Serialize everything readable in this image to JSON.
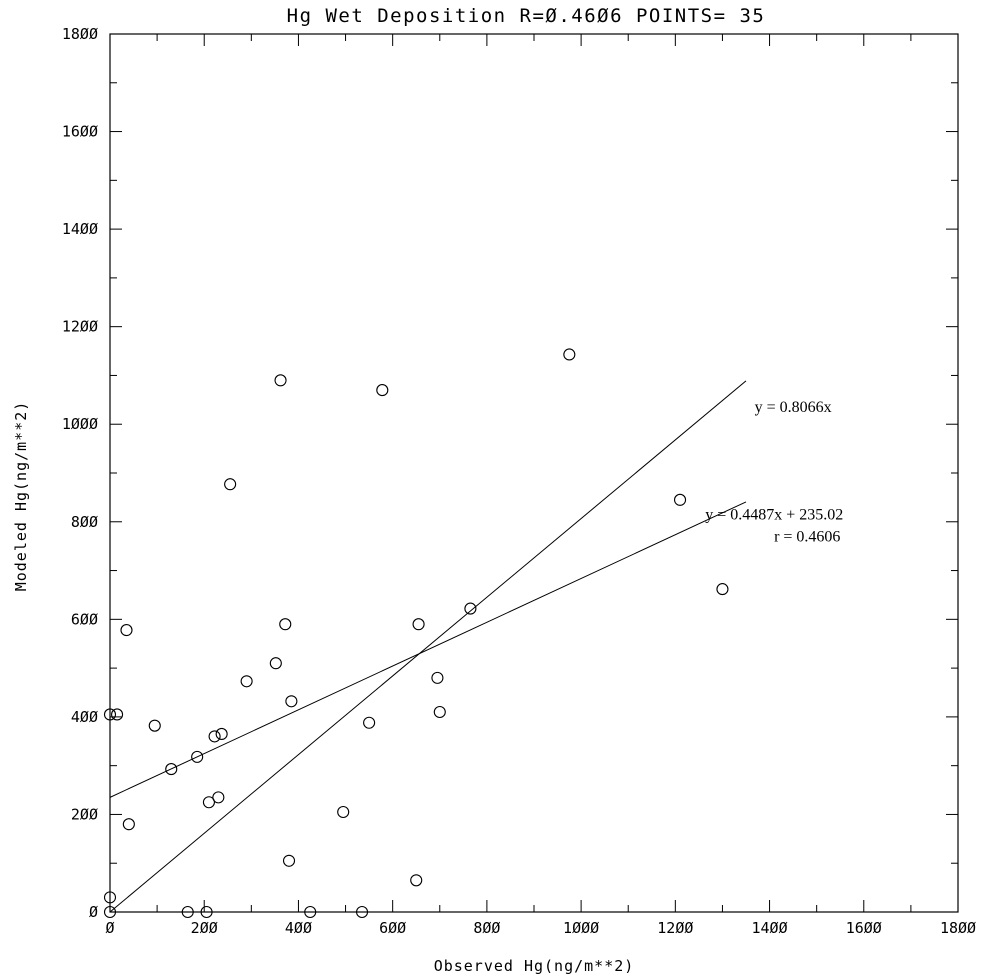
{
  "chart_data": {
    "type": "scatter",
    "title": "Hg Wet Deposition  R=Ø.46Ø6 POINTS= 35",
    "xlabel": "Observed Hg(ng/m**2)",
    "ylabel": "Modeled Hg(ng/m**2)",
    "xlim": [
      0,
      1800
    ],
    "ylim": [
      0,
      1800
    ],
    "xticks": [
      0,
      200,
      400,
      600,
      800,
      1000,
      1200,
      1400,
      1600,
      1800
    ],
    "yticks": [
      0,
      200,
      400,
      600,
      800,
      1000,
      1200,
      1400,
      1600,
      1800
    ],
    "xtick_labels": [
      "Ø",
      "2ØØ",
      "4ØØ",
      "6ØØ",
      "8ØØ",
      "1ØØØ",
      "12ØØ",
      "14ØØ",
      "16ØØ",
      "18ØØ"
    ],
    "ytick_labels": [
      "Ø",
      "2ØØ",
      "4ØØ",
      "6ØØ",
      "8ØØ",
      "1ØØØ",
      "12ØØ",
      "14ØØ",
      "16ØØ",
      "18ØØ"
    ],
    "grid": false,
    "points": [
      {
        "x": 0,
        "y": 30
      },
      {
        "x": 0,
        "y": 405
      },
      {
        "x": 15,
        "y": 405
      },
      {
        "x": 35,
        "y": 578
      },
      {
        "x": 40,
        "y": 180
      },
      {
        "x": 95,
        "y": 382
      },
      {
        "x": 130,
        "y": 293
      },
      {
        "x": 165,
        "y": 0
      },
      {
        "x": 185,
        "y": 318
      },
      {
        "x": 205,
        "y": 0
      },
      {
        "x": 210,
        "y": 225
      },
      {
        "x": 222,
        "y": 360
      },
      {
        "x": 230,
        "y": 235
      },
      {
        "x": 237,
        "y": 365
      },
      {
        "x": 255,
        "y": 877
      },
      {
        "x": 290,
        "y": 473
      },
      {
        "x": 352,
        "y": 510
      },
      {
        "x": 362,
        "y": 1090
      },
      {
        "x": 372,
        "y": 590
      },
      {
        "x": 380,
        "y": 105
      },
      {
        "x": 385,
        "y": 432
      },
      {
        "x": 425,
        "y": 0
      },
      {
        "x": 495,
        "y": 205
      },
      {
        "x": 535,
        "y": 0
      },
      {
        "x": 550,
        "y": 388
      },
      {
        "x": 578,
        "y": 1070
      },
      {
        "x": 650,
        "y": 65
      },
      {
        "x": 655,
        "y": 590
      },
      {
        "x": 695,
        "y": 480
      },
      {
        "x": 700,
        "y": 410
      },
      {
        "x": 765,
        "y": 622
      },
      {
        "x": 975,
        "y": 1143
      },
      {
        "x": 1210,
        "y": 845
      },
      {
        "x": 1300,
        "y": 662
      },
      {
        "x": 0,
        "y": 0
      }
    ],
    "lines": [
      {
        "slope": 0.8066,
        "intercept": 0,
        "x_range": [
          0,
          1350
        ]
      },
      {
        "slope": 0.4487,
        "intercept": 235.02,
        "x_range": [
          0,
          1350
        ]
      }
    ],
    "annotations": [
      {
        "text": "y = 0.8066x",
        "x": 1450,
        "y": 1025
      },
      {
        "text": "y = 0.4487x + 235.02",
        "x": 1410,
        "y": 805
      },
      {
        "text": "r = 0.4606",
        "x": 1480,
        "y": 760
      }
    ],
    "colors": {
      "axis": "#000000",
      "marker": "#000000",
      "background": "#ffffff"
    }
  }
}
